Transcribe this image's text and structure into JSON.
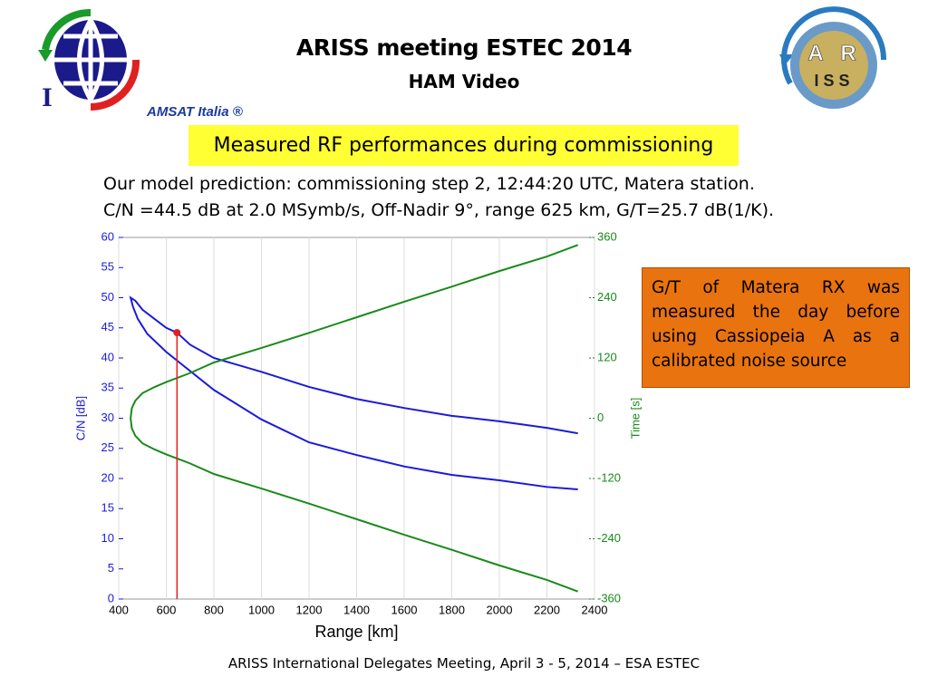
{
  "slide": {
    "title": "ARISS meeting ESTEC 2014",
    "subtitle": "HAM Video",
    "highlight": "Measured RF performances during commissioning",
    "description": [
      "Our model prediction: commissioning step 2, 12:44:20 UTC, Matera station.",
      "C/N =44.5 dB at 2.0 MSymb/s, Off-Nadir 9°, range 625 km, G/T=25.7 dB(1/K)."
    ],
    "note": "G/T of Matera RX was measured the day before using Cassiopeia A as a calibrated noise source",
    "footer": "ARISS International Delegates Meeting, April 3 - 5, 2014 – ESA ESTEC",
    "amsat_logo": {
      "letter": "I",
      "text": "AMSAT Italia ®"
    },
    "ariss_logo": [
      "A",
      "R",
      "I S S"
    ]
  },
  "chart_data": {
    "type": "line",
    "xlabel": "Range [km]",
    "ylabel": "C/N [dB]",
    "y2label": "Time [s]",
    "xlim": [
      400,
      2400
    ],
    "xticks": [
      400,
      600,
      800,
      1000,
      1200,
      1400,
      1600,
      1800,
      2000,
      2200,
      2400
    ],
    "ylim": [
      0,
      60
    ],
    "yticks": [
      0,
      5,
      10,
      15,
      20,
      25,
      30,
      35,
      40,
      45,
      50,
      55,
      60
    ],
    "y2lim": [
      -360,
      360
    ],
    "y2ticks": [
      -360,
      -240,
      -120,
      0,
      120,
      240,
      360
    ],
    "grid": true,
    "series": [
      {
        "color": "#1a1adb",
        "axis": "y",
        "x": [
          2330,
          2200,
          2000,
          1800,
          1600,
          1400,
          1200,
          1000,
          800,
          600,
          520,
          480,
          460,
          450,
          470,
          500,
          550,
          600,
          645,
          700,
          800,
          1000,
          1200,
          1400,
          1600,
          1800,
          2000,
          2200,
          2330
        ],
        "values": [
          18.2,
          18.6,
          19.7,
          20.6,
          22,
          23.9,
          26,
          29.8,
          34.7,
          41,
          44,
          46.5,
          48.5,
          50,
          49.5,
          48,
          46.5,
          45,
          44.2,
          42.2,
          40,
          37.7,
          35.2,
          33.2,
          31.7,
          30.4,
          29.5,
          28.4,
          27.5
        ]
      },
      {
        "color": "#1a8a1a",
        "axis": "y2",
        "x": [
          2330,
          2200,
          2000,
          1800,
          1600,
          1400,
          1200,
          1000,
          800,
          700,
          600,
          550,
          500,
          470,
          455,
          450,
          455,
          470,
          500,
          550,
          600,
          700,
          800,
          1000,
          1200,
          1400,
          1600,
          1800,
          2000,
          2200,
          2330
        ],
        "values": [
          -345,
          -322,
          -293,
          -262,
          -232,
          -201,
          -170,
          -140,
          -111,
          -90,
          -72,
          -62,
          -50,
          -35,
          -20,
          0,
          20,
          35,
          50,
          62,
          72,
          90,
          111,
          140,
          170,
          201,
          232,
          262,
          293,
          322,
          345
        ]
      }
    ],
    "marker": {
      "x": 645,
      "value": 44.2,
      "color": "#e02020"
    }
  }
}
